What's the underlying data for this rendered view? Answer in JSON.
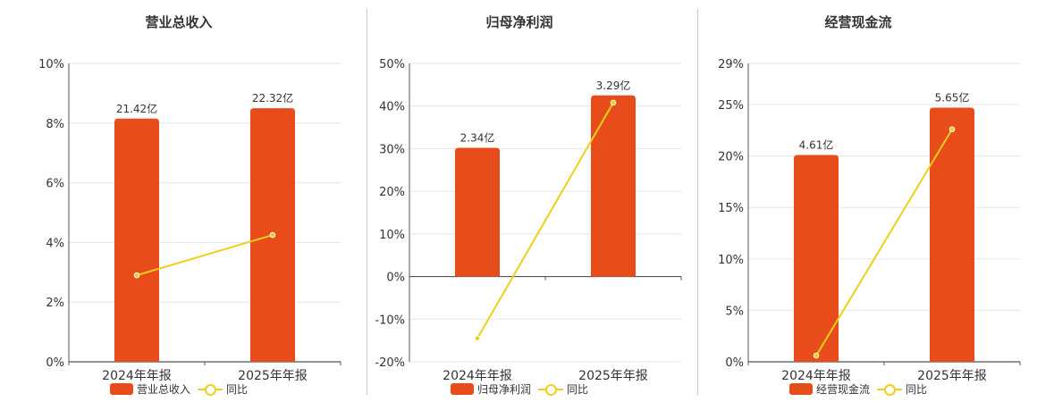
{
  "colors": {
    "bar": "#e84c1a",
    "line": "#f0cf1a",
    "axis": "#555555",
    "grid": "#e6e6e6",
    "text": "#333333"
  },
  "chart_data": [
    {
      "type": "bar",
      "title": "营业总收入",
      "categories": [
        "2024年年报",
        "2025年年报"
      ],
      "series": [
        {
          "name": "营业总收入",
          "type": "bar",
          "values": [
            8.15,
            8.5
          ],
          "labels": [
            "21.42亿",
            "22.32亿"
          ]
        },
        {
          "name": "同比",
          "type": "line",
          "values": [
            2.9,
            4.25
          ]
        }
      ],
      "yticks": [
        "10%",
        "8%",
        "6%",
        "4%",
        "2%",
        "0%"
      ],
      "ylim": [
        0,
        10
      ],
      "grid": true,
      "legend": "bottom"
    },
    {
      "type": "bar",
      "title": "归母净利润",
      "categories": [
        "2024年年报",
        "2025年年报"
      ],
      "series": [
        {
          "name": "归母净利润",
          "type": "bar",
          "values": [
            30.2,
            42.5
          ],
          "labels": [
            "2.34亿",
            "3.29亿"
          ]
        },
        {
          "name": "同比",
          "type": "line",
          "values": [
            -14.5,
            40.8
          ]
        }
      ],
      "yticks": [
        "50%",
        "40%",
        "30%",
        "20%",
        "10%",
        "0%",
        "-10%",
        "-20%"
      ],
      "ylim": [
        -20,
        50
      ],
      "grid": true,
      "legend": "bottom"
    },
    {
      "type": "bar",
      "title": "经营现金流",
      "categories": [
        "2024年年报",
        "2025年年报"
      ],
      "series": [
        {
          "name": "经营现金流",
          "type": "bar",
          "values": [
            20.1,
            24.7
          ],
          "labels": [
            "4.61亿",
            "5.65亿"
          ]
        },
        {
          "name": "同比",
          "type": "line",
          "values": [
            0.6,
            22.6
          ]
        }
      ],
      "yticks": [
        "29%",
        "25%",
        "20%",
        "15%",
        "10%",
        "5%",
        "0%"
      ],
      "ylim": [
        0,
        29
      ],
      "grid": true,
      "legend": "bottom"
    }
  ]
}
